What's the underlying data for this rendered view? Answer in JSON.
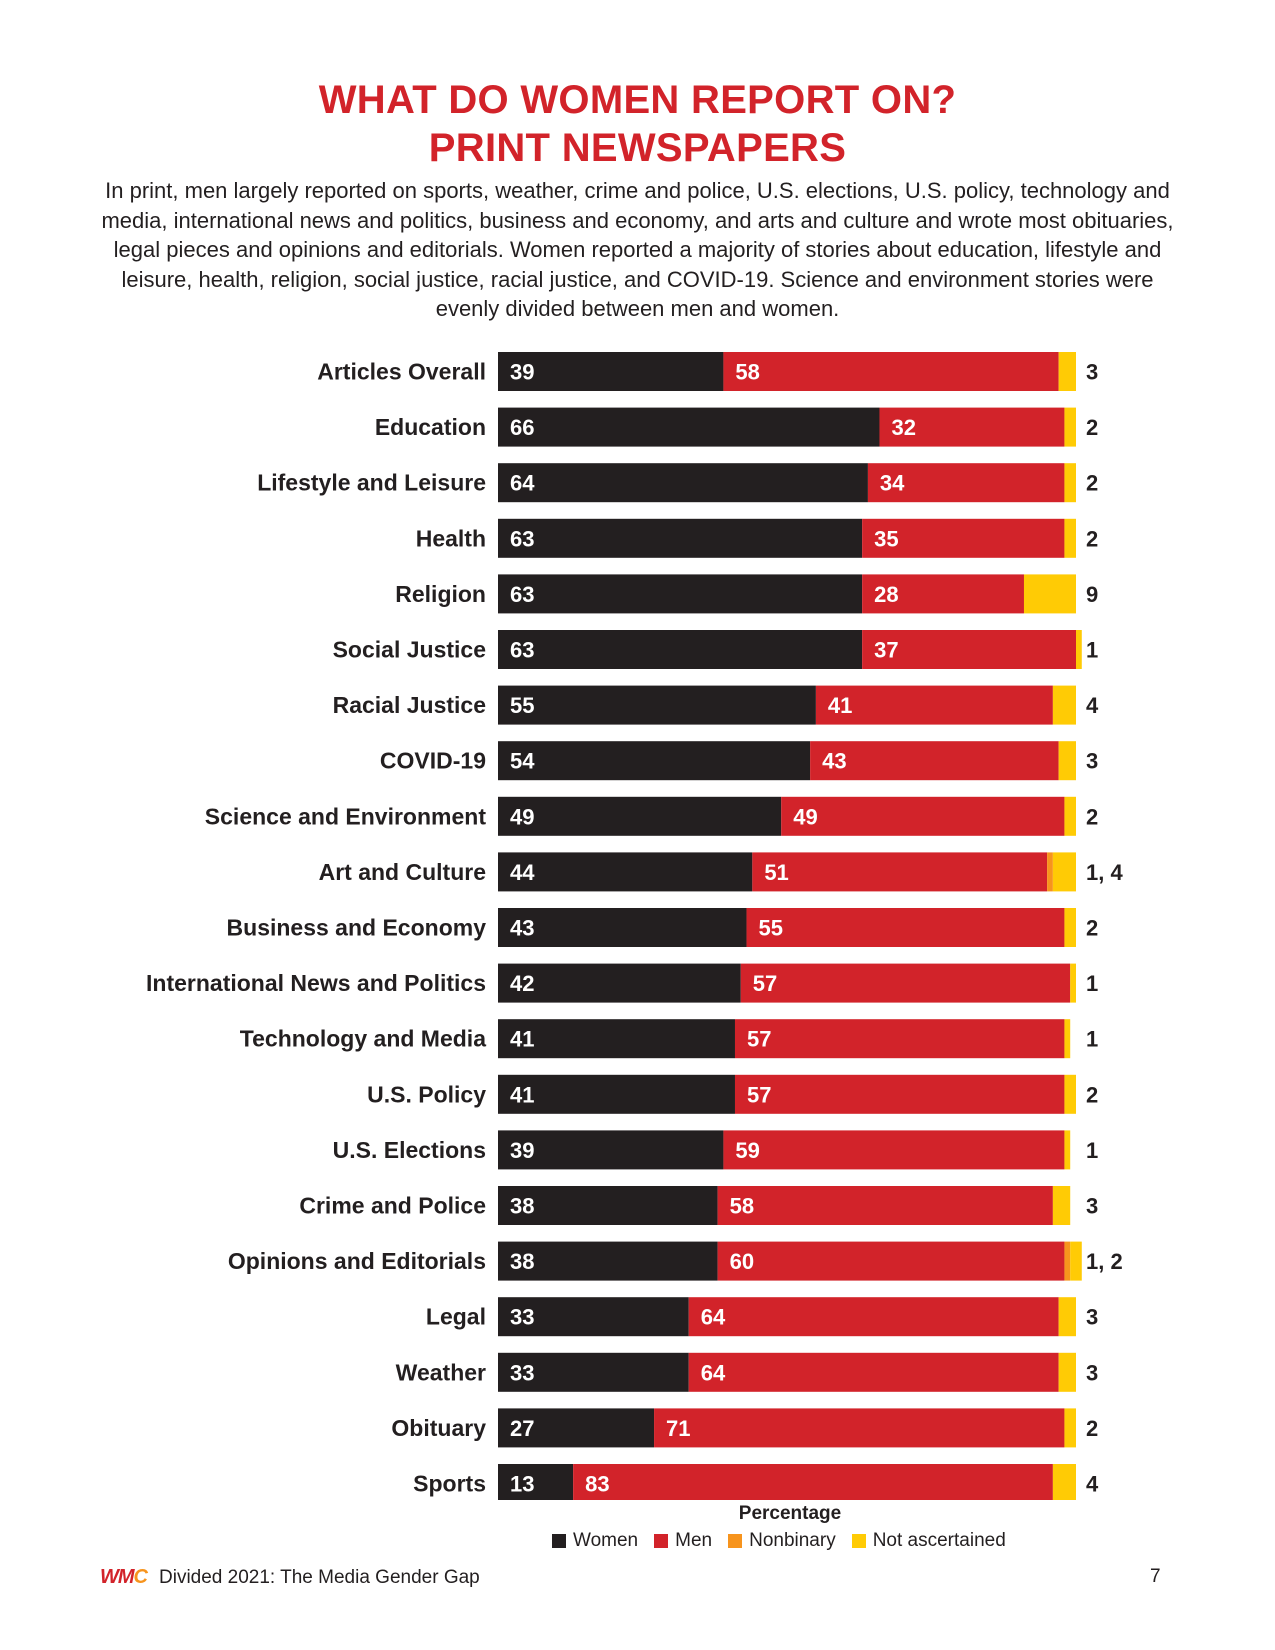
{
  "header": {
    "title_line1": "WHAT DO WOMEN REPORT ON?",
    "title_line2": "PRINT NEWSPAPERS",
    "subtitle": "In print, men largely reported on sports, weather, crime and police, U.S. elections, U.S. policy, technology and media, international news and politics, business and economy, and arts and culture and wrote most obituaries, legal pieces and opinions and editorials. Women reported a majority of stories about education, lifestyle and leisure, health, religion, social justice, racial justice, and COVID-19. Science and environment stories were evenly divided between men and women."
  },
  "colors": {
    "Women": "#231f20",
    "Men": "#d2232a",
    "Nonbinary": "#f7941d",
    "Not ascertained": "#ffcb05"
  },
  "chart_data": {
    "type": "bar",
    "orientation": "horizontal",
    "stacked": true,
    "xlabel": "Percentage",
    "xlim": [
      0,
      100
    ],
    "categories": [
      "Articles Overall",
      "Education",
      "Lifestyle and Leisure",
      "Health",
      "Religion",
      "Social Justice",
      "Racial Justice",
      "COVID-19",
      "Science and Environment",
      "Art and Culture",
      "Business and Economy",
      "International News and Politics",
      "Technology and Media",
      "U.S. Policy",
      "U.S. Elections",
      "Crime and Police",
      "Opinions and Editorials",
      "Legal",
      "Weather",
      "Obituary",
      "Sports"
    ],
    "series": [
      {
        "name": "Women",
        "values": [
          39,
          66,
          64,
          63,
          63,
          63,
          55,
          54,
          49,
          44,
          43,
          42,
          41,
          41,
          39,
          38,
          38,
          33,
          33,
          27,
          13
        ]
      },
      {
        "name": "Men",
        "values": [
          58,
          32,
          34,
          35,
          28,
          37,
          41,
          43,
          49,
          51,
          55,
          57,
          57,
          57,
          59,
          58,
          60,
          64,
          64,
          71,
          83
        ]
      },
      {
        "name": "Nonbinary",
        "values": [
          0,
          0,
          0,
          0,
          0,
          0,
          0,
          0,
          0,
          1,
          0,
          0,
          0,
          0,
          0,
          0,
          1,
          0,
          0,
          0,
          0
        ]
      },
      {
        "name": "Not ascertained",
        "values": [
          3,
          2,
          2,
          2,
          9,
          1,
          4,
          3,
          2,
          4,
          2,
          1,
          1,
          2,
          1,
          3,
          2,
          3,
          3,
          2,
          4
        ]
      }
    ],
    "end_labels": [
      "3",
      "2",
      "2",
      "2",
      "9",
      "1",
      "4",
      "3",
      "2",
      "1, 4",
      "2",
      "1",
      "1",
      "2",
      "1",
      "3",
      "1, 2",
      "3",
      "3",
      "2",
      "4"
    ],
    "legend": [
      "Women",
      "Men",
      "Nonbinary",
      "Not ascertained"
    ],
    "legend_position": "bottom"
  },
  "footer": {
    "logo_text_1": "WM",
    "logo_text_2": "C",
    "report_title": "Divided 2021: The Media Gender Gap",
    "page_number": "7"
  }
}
